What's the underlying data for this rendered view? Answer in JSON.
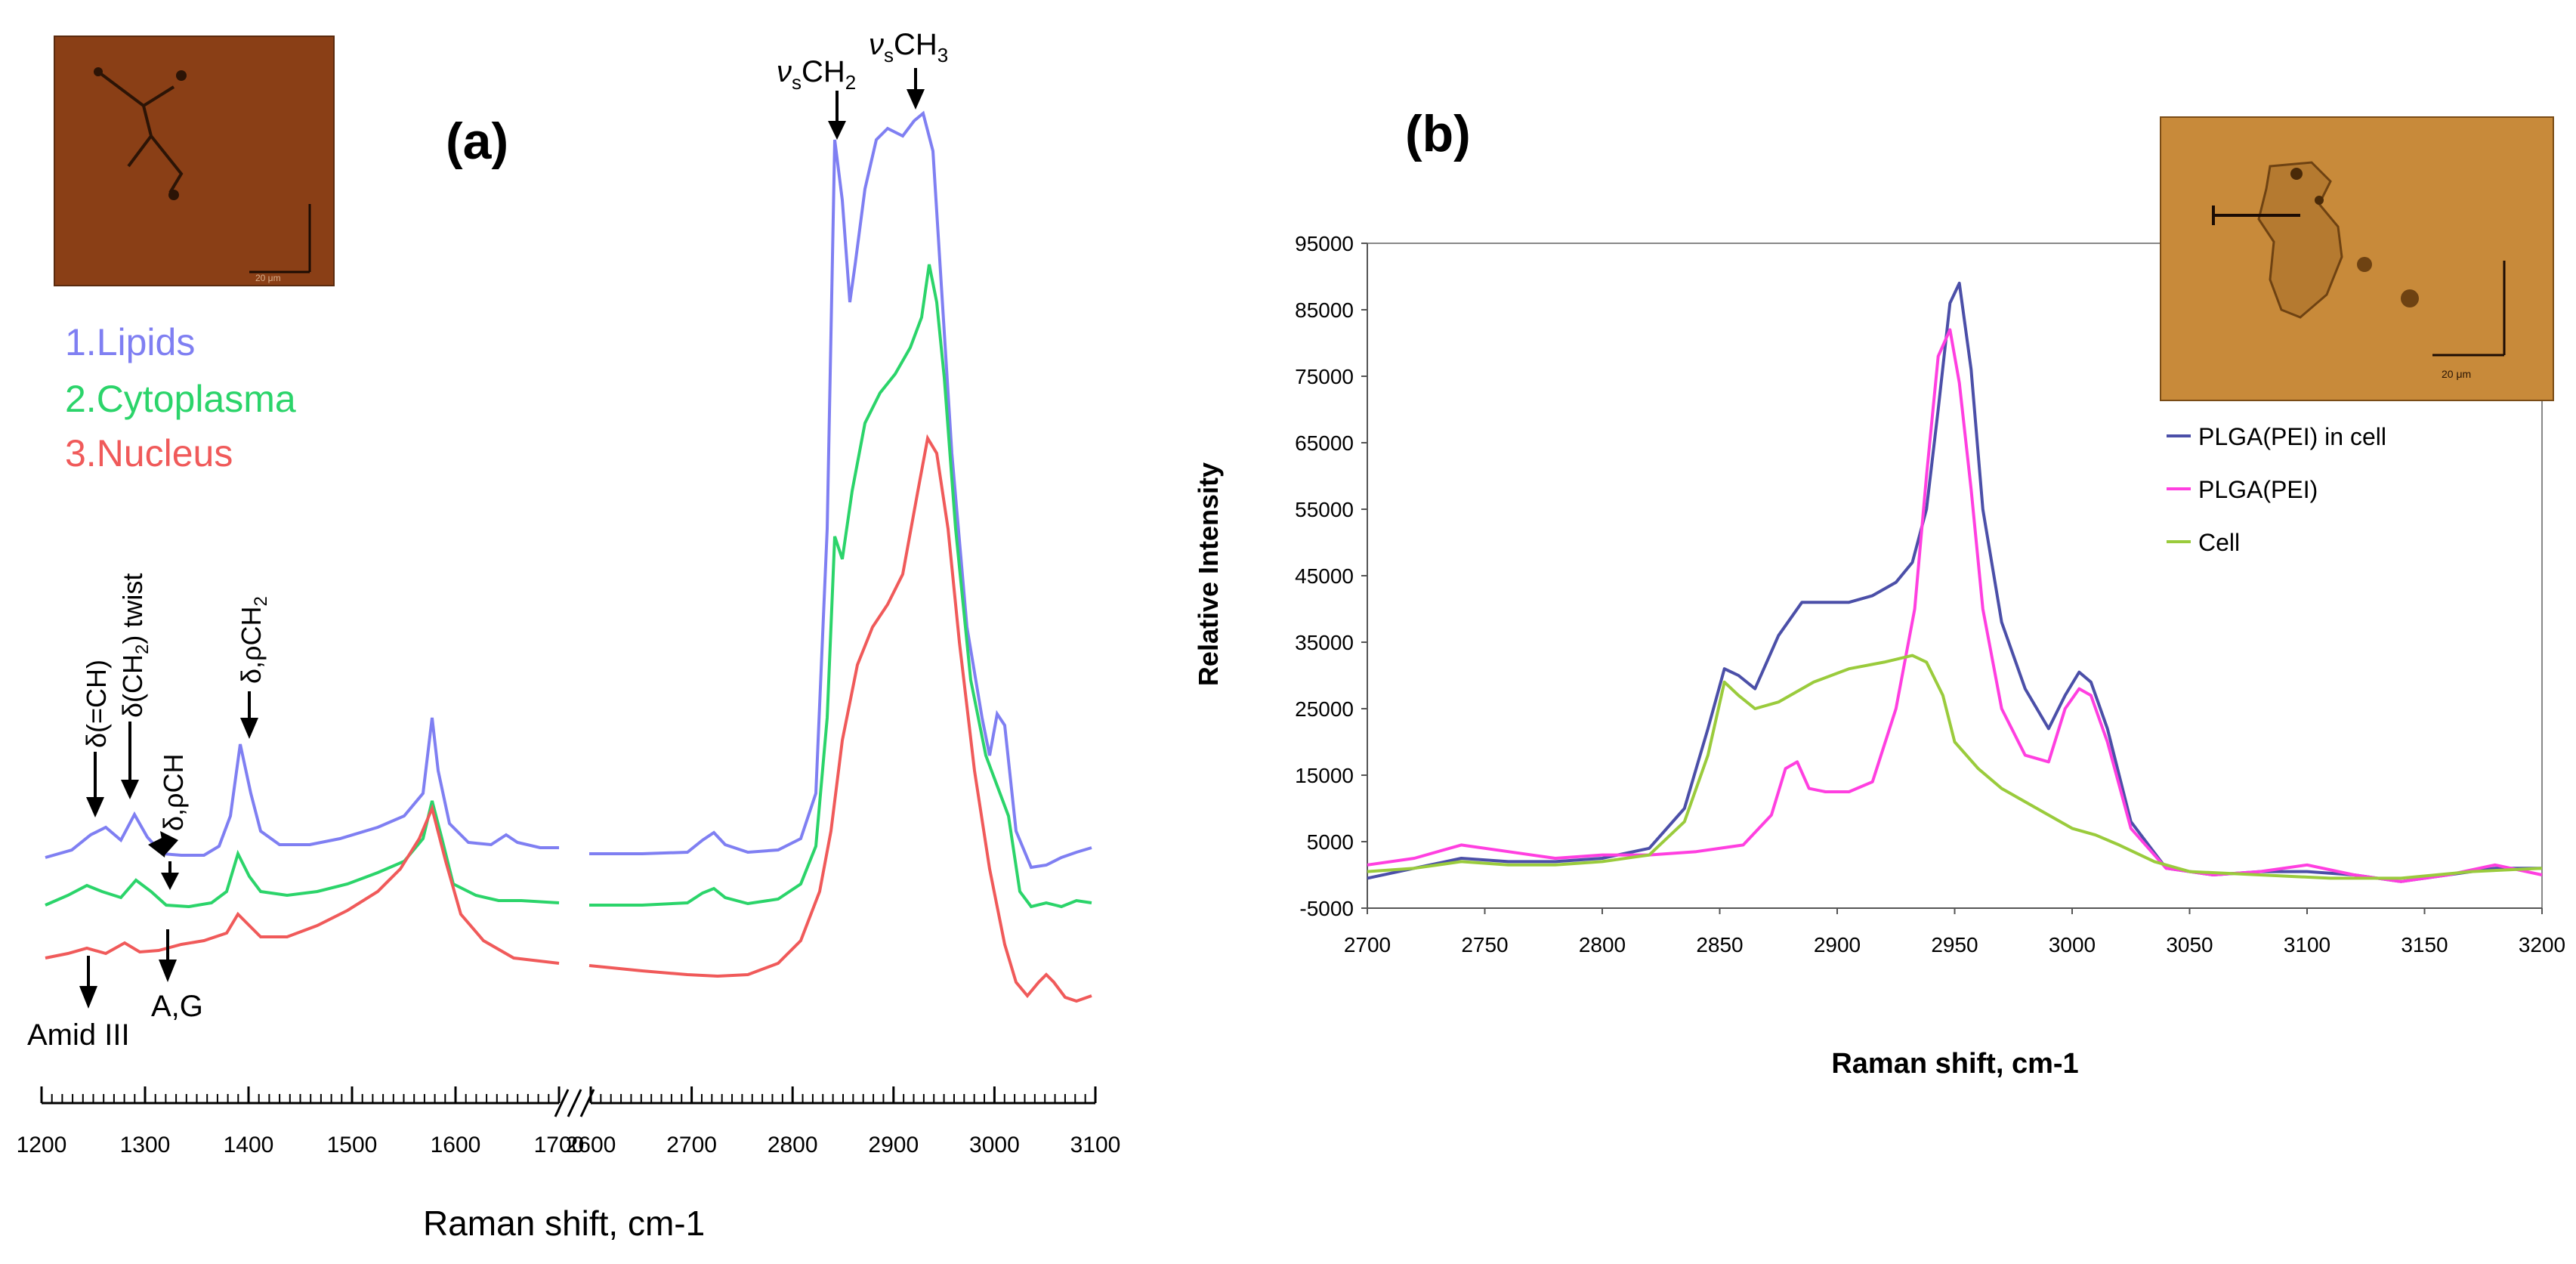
{
  "panel_a": {
    "label": "(a)",
    "legend": [
      {
        "text": "1.Lipids",
        "color": "#7f7ff2"
      },
      {
        "text": "2.Cytoplasma",
        "color": "#2bd46a"
      },
      {
        "text": "3.Nucleus",
        "color": "#f05a5a"
      }
    ],
    "annotations": {
      "vs_ch2": "ν",
      "vs_ch2_sub": "s",
      "vs_ch2_tail": "CH",
      "vs_ch2_sub2": "2",
      "vs_ch3": "ν",
      "vs_ch3_sub": "s",
      "vs_ch3_tail": "CH",
      "vs_ch3_sub2": "3",
      "d_ch": "δ(=CH)",
      "d_ch2_twist": "δ(CH",
      "d_ch2_twist_sub": "2",
      "d_ch2_twist_tail": ") twist",
      "d_pch": "δ,ρCH",
      "d_pch2": "δ,ρCH",
      "d_pch2_sub": "2",
      "amid": "Amid III",
      "ag": "A,G"
    },
    "inset_scale": "20 μm"
  },
  "panel_b": {
    "label": "(b)",
    "inset_scale": "20 μm"
  },
  "chart_data": [
    {
      "type": "line",
      "title": "(a)",
      "xlabel": "Raman shift, cm-1",
      "ylabel": "",
      "x_ticks": [
        "1200",
        "1300",
        "1400",
        "1500",
        "1600",
        "1700",
        "2600",
        "2700",
        "2800",
        "2900",
        "3000",
        "3100"
      ],
      "axis_break": "between 1700 and 2600",
      "series": [
        {
          "name": "1.Lipids",
          "color": "#7f7ff2"
        },
        {
          "name": "2.Cytoplasma",
          "color": "#2bd46a"
        },
        {
          "name": "3.Nucleus",
          "color": "#f05a5a"
        }
      ]
    },
    {
      "type": "line",
      "title": "(b)",
      "xlabel": "Raman shift, cm-1",
      "ylabel": "Relative Intensity",
      "xlim": [
        2700,
        3200
      ],
      "ylim": [
        -5000,
        95000
      ],
      "x_ticks": [
        "2700",
        "2750",
        "2800",
        "2850",
        "2900",
        "2950",
        "3000",
        "3050",
        "3100",
        "3150",
        "3200"
      ],
      "y_ticks": [
        "95000",
        "85000",
        "75000",
        "65000",
        "55000",
        "45000",
        "35000",
        "25000",
        "15000",
        "5000",
        "-5000"
      ],
      "legend": [
        "PLGA(PEI) in cell",
        "PLGA(PEI)",
        "Cell"
      ],
      "series": [
        {
          "name": "PLGA(PEI) in cell",
          "color": "#4b4fa8",
          "x": [
            2700,
            2720,
            2740,
            2760,
            2780,
            2800,
            2820,
            2835,
            2845,
            2852,
            2858,
            2865,
            2875,
            2885,
            2895,
            2905,
            2915,
            2925,
            2932,
            2938,
            2943,
            2948,
            2952,
            2957,
            2962,
            2970,
            2980,
            2990,
            2997,
            3003,
            3008,
            3015,
            3025,
            3040,
            3060,
            3080,
            3100,
            3120,
            3140,
            3160,
            3180,
            3200
          ],
          "y": [
            -500,
            1000,
            2500,
            2000,
            2000,
            2500,
            4000,
            10000,
            22000,
            31000,
            30000,
            28000,
            36000,
            41000,
            41000,
            41000,
            42000,
            44000,
            47000,
            55000,
            70000,
            86000,
            89000,
            76000,
            55000,
            38000,
            28000,
            22000,
            27000,
            30500,
            29000,
            22000,
            8000,
            1000,
            0,
            500,
            500,
            0,
            -1000,
            0,
            1000,
            1000
          ]
        },
        {
          "name": "PLGA(PEI)",
          "color": "#ff3fe0",
          "x": [
            2700,
            2720,
            2740,
            2760,
            2780,
            2800,
            2820,
            2840,
            2860,
            2872,
            2878,
            2883,
            2888,
            2895,
            2905,
            2915,
            2925,
            2933,
            2938,
            2943,
            2948,
            2952,
            2957,
            2962,
            2970,
            2980,
            2990,
            2997,
            3003,
            3008,
            3015,
            3025,
            3040,
            3060,
            3080,
            3100,
            3120,
            3140,
            3160,
            3180,
            3200
          ],
          "y": [
            1500,
            2500,
            4500,
            3500,
            2500,
            3000,
            3000,
            3500,
            4500,
            9000,
            16000,
            17000,
            13000,
            12500,
            12500,
            14000,
            25000,
            40000,
            60000,
            78000,
            82000,
            74000,
            58000,
            40000,
            25000,
            18000,
            17000,
            25000,
            28000,
            27000,
            20000,
            7000,
            1000,
            0,
            500,
            1500,
            0,
            -1000,
            0,
            1500,
            0
          ]
        },
        {
          "name": "Cell",
          "color": "#9acb3c",
          "x": [
            2700,
            2720,
            2740,
            2760,
            2780,
            2800,
            2820,
            2835,
            2845,
            2852,
            2858,
            2865,
            2875,
            2890,
            2905,
            2920,
            2932,
            2938,
            2945,
            2950,
            2960,
            2970,
            2985,
            3000,
            3010,
            3020,
            3035,
            3050,
            3080,
            3110,
            3140,
            3170,
            3200
          ],
          "y": [
            500,
            1000,
            2000,
            1500,
            1500,
            2000,
            3000,
            8000,
            18000,
            29000,
            27000,
            25000,
            26000,
            29000,
            31000,
            32000,
            33000,
            32000,
            27000,
            20000,
            16000,
            13000,
            10000,
            7000,
            6000,
            4500,
            2000,
            500,
            0,
            -500,
            -500,
            500,
            1000
          ]
        }
      ]
    }
  ]
}
